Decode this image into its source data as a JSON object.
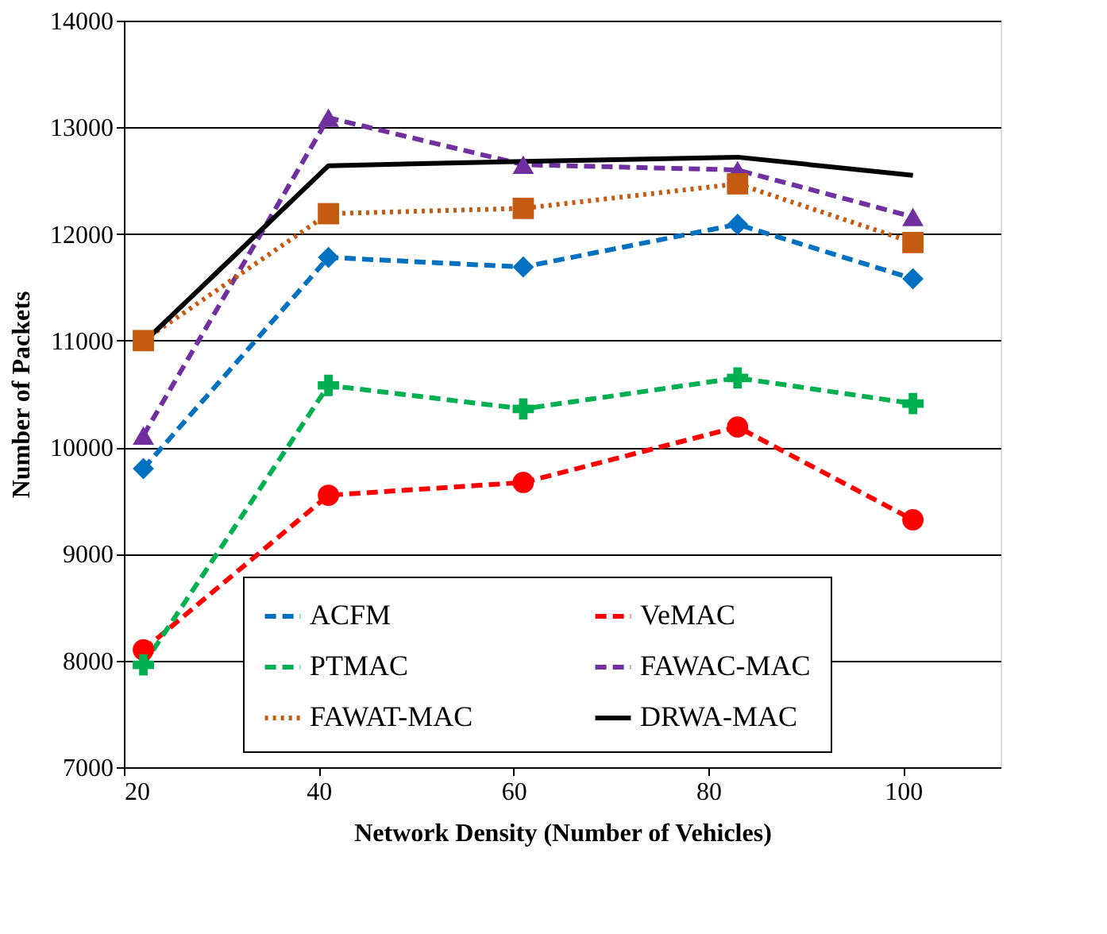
{
  "chart_data": {
    "type": "line",
    "xlabel": "Network Density (Number of Vehicles)",
    "ylabel": "Number of Packets",
    "x": [
      22,
      41,
      61,
      83,
      101
    ],
    "xlim": [
      20,
      110
    ],
    "xticks": [
      20,
      40,
      60,
      80,
      100
    ],
    "ylim": [
      7000,
      14000
    ],
    "yticks": [
      7000,
      8000,
      9000,
      10000,
      11000,
      12000,
      13000,
      14000
    ],
    "grid": "y",
    "legend": "bottom",
    "series": [
      {
        "name": "ACFM",
        "color": "#0070c0",
        "marker": "diamond",
        "line_style": "dashed",
        "values": [
          9800,
          11780,
          11690,
          12090,
          11580
        ]
      },
      {
        "name": "VeMAC",
        "color": "#ff0000",
        "marker": "circle",
        "line_style": "dashed",
        "values": [
          8100,
          9550,
          9670,
          10190,
          9320
        ]
      },
      {
        "name": "PTMAC",
        "color": "#00b050",
        "marker": "cross",
        "line_style": "dashed",
        "values": [
          7960,
          10580,
          10360,
          10650,
          10410
        ]
      },
      {
        "name": "FAWAC-MAC",
        "color": "#7030a0",
        "marker": "triangle",
        "line_style": "dashed",
        "values": [
          10110,
          13090,
          12650,
          12600,
          12160
        ]
      },
      {
        "name": "FAWAT-MAC",
        "color": "#c55a11",
        "marker": "square",
        "line_style": "dotted",
        "values": [
          11000,
          12190,
          12240,
          12470,
          11920
        ]
      },
      {
        "name": "DRWA-MAC",
        "color": "#000000",
        "marker": "none",
        "line_style": "solid",
        "values": [
          10980,
          12640,
          12680,
          12720,
          12550
        ]
      }
    ]
  }
}
